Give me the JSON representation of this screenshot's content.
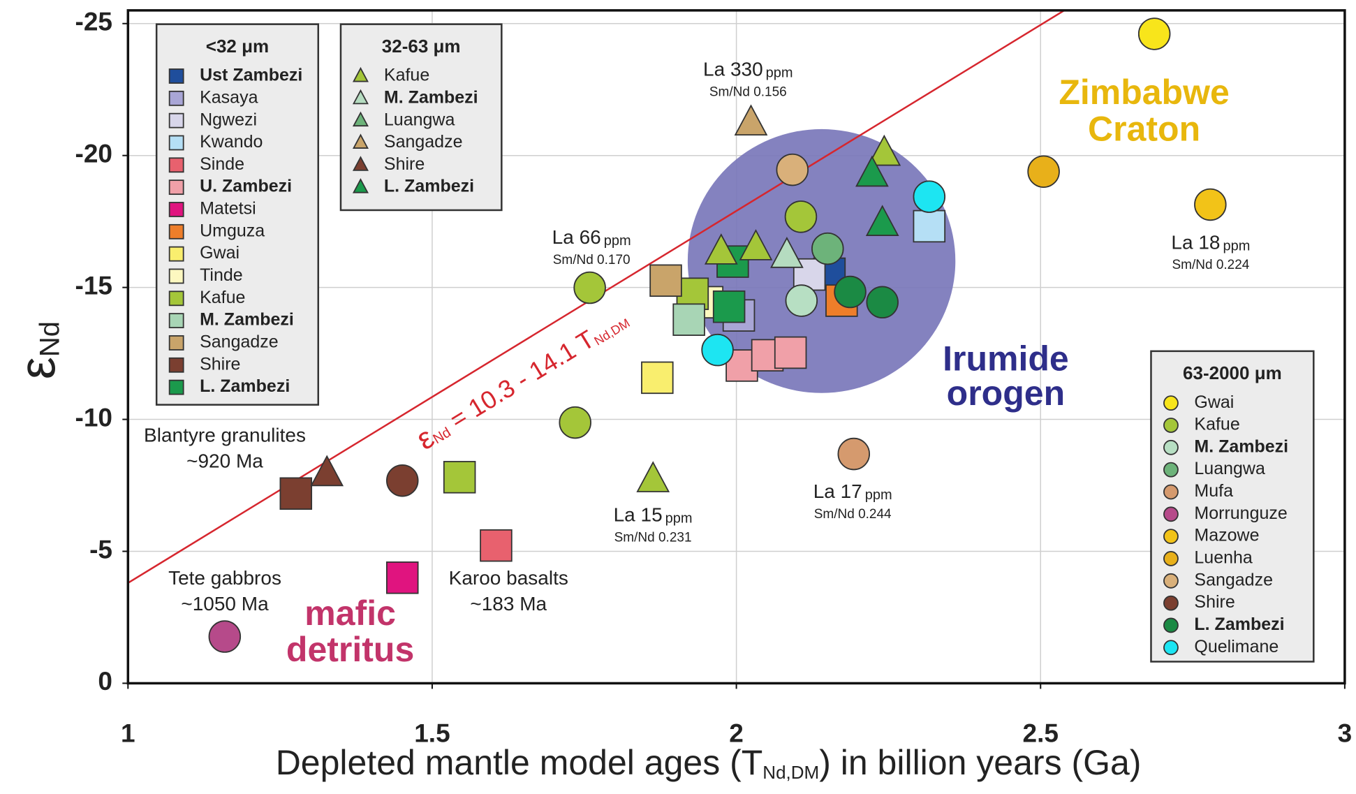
{
  "chart_data": {
    "type": "scatter",
    "xlabel": [
      "Depleted mantle model ages (T",
      "Nd,DM",
      ") in billion years (Ga)"
    ],
    "ylabel": [
      "ε",
      "Nd"
    ],
    "xlim": [
      1,
      3
    ],
    "ylim": [
      0,
      -25.5
    ],
    "xticks": [
      1,
      1.5,
      2,
      2.5,
      3
    ],
    "yticks": [
      0,
      -5,
      -10,
      -15,
      -20,
      -25
    ],
    "grid": true,
    "fit": {
      "intercept": 10.3,
      "slope": -14.1,
      "color": "#d6262e",
      "label": [
        "ε",
        "Nd",
        " = 10.3 - 14.1 T",
        "Nd,DM"
      ]
    },
    "region": {
      "x": 2.14,
      "y": -16,
      "rx": 0.22,
      "ry": 5,
      "color": "#7774b8",
      "label": [
        "Irumide",
        "orogen"
      ],
      "label_color": "#2e2e8a"
    },
    "groups": [
      {
        "title": "<32 μm",
        "marker": "square",
        "series": [
          {
            "name": "Ust Zambezi",
            "bold": true,
            "color": "#1f4e9c",
            "x": [
              2.153
            ],
            "y": [
              -15.52
            ]
          },
          {
            "name": "Kasaya",
            "color": "#a9a6d6",
            "x": [
              2.004
            ],
            "y": [
              -13.94
            ]
          },
          {
            "name": "Ngwezi",
            "color": "#d8d6ea",
            "x": [
              2.12
            ],
            "y": [
              -15.49
            ]
          },
          {
            "name": "Kwando",
            "color": "#b5dff5",
            "x": [
              2.317
            ],
            "y": [
              -17.32
            ]
          },
          {
            "name": "Sinde",
            "color": "#e8616e",
            "x": [
              1.605
            ],
            "y": [
              -5.22
            ]
          },
          {
            "name": "U. Zambezi",
            "bold": true,
            "color": "#f0a0a8",
            "x": [
              2.009,
              2.051,
              2.089
            ],
            "y": [
              -12.04,
              -12.43,
              -12.53
            ]
          },
          {
            "name": "Matetsi",
            "color": "#e0147f",
            "x": [
              1.451
            ],
            "y": [
              -4.0
            ]
          },
          {
            "name": "Umguza",
            "color": "#ee7e2a",
            "x": [
              2.173
            ],
            "y": [
              -14.5
            ]
          },
          {
            "name": "Gwai",
            "color": "#f9ee6e",
            "x": [
              1.87
            ],
            "y": [
              -11.58
            ]
          },
          {
            "name": "Tinde",
            "color": "#fdf8c0",
            "x": [
              1.952
            ],
            "y": [
              -14.44
            ]
          },
          {
            "name": "Kafue",
            "color": "#a4c639",
            "x": [
              1.928,
              1.545
            ],
            "y": [
              -14.76,
              -7.81
            ]
          },
          {
            "name": "M. Zambezi",
            "bold": true,
            "color": "#a8d5b5",
            "x": [
              1.922
            ],
            "y": [
              -13.78
            ]
          },
          {
            "name": "Sangadze",
            "color": "#c9a46a",
            "x": [
              1.884
            ],
            "y": [
              -15.26
            ]
          },
          {
            "name": "Shire",
            "color": "#7b3f30",
            "x": [
              1.276
            ],
            "y": [
              -7.19
            ]
          },
          {
            "name": "L. Zambezi",
            "bold": true,
            "color": "#1b9a4c",
            "x": [
              1.988,
              1.994
            ],
            "y": [
              -14.27,
              -15.98
            ]
          }
        ]
      },
      {
        "title": "32-63 μm",
        "marker": "triangle",
        "series": [
          {
            "name": "Kafue",
            "color": "#a4c639",
            "x": [
              1.975,
              2.032,
              1.863,
              2.243
            ],
            "y": [
              -16.34,
              -16.5,
              -7.71,
              -20.08
            ]
          },
          {
            "name": "M. Zambezi",
            "bold": true,
            "color": "#b5dcc0",
            "x": [
              2.083
            ],
            "y": [
              -16.21
            ]
          },
          {
            "name": "Luangwa",
            "color": "#6db37a",
            "x": [],
            "y": []
          },
          {
            "name": "Sangadze",
            "color": "#c9a46a",
            "x": [
              2.024
            ],
            "y": [
              -21.23
            ]
          },
          {
            "name": "Shire",
            "color": "#7b3f30",
            "x": [
              1.327
            ],
            "y": [
              -7.94
            ]
          },
          {
            "name": "L. Zambezi",
            "bold": true,
            "color": "#1b9a4c",
            "x": [
              2.223,
              2.24
            ],
            "y": [
              -19.29,
              -17.42
            ]
          }
        ]
      },
      {
        "title": "63-2000 μm",
        "marker": "circle",
        "series": [
          {
            "name": "Gwai",
            "color": "#f8e51b",
            "x": [
              2.687
            ],
            "y": [
              -24.61
            ]
          },
          {
            "name": "Kafue",
            "color": "#a4c639",
            "x": [
              2.106,
              1.759,
              1.735
            ],
            "y": [
              -17.68,
              -14.99,
              -9.88
            ]
          },
          {
            "name": "M. Zambezi",
            "bold": true,
            "color": "#b7dfc3",
            "x": [
              2.107
            ],
            "y": [
              -14.5
            ]
          },
          {
            "name": "Luangwa",
            "color": "#6db37a",
            "x": [
              2.15
            ],
            "y": [
              -16.47
            ]
          },
          {
            "name": "Mufa",
            "color": "#d59a6e",
            "x": [
              2.193
            ],
            "y": [
              -8.69
            ]
          },
          {
            "name": "Morrunguze",
            "color": "#b64a8a",
            "x": [
              1.159
            ],
            "y": [
              -1.77
            ]
          },
          {
            "name": "Mazowe",
            "color": "#f2c318",
            "x": [
              2.779
            ],
            "y": [
              -18.14
            ]
          },
          {
            "name": "Luenha",
            "color": "#e8b01a",
            "x": [
              2.505
            ],
            "y": [
              -19.39
            ]
          },
          {
            "name": "Sangadze",
            "color": "#d9b07a",
            "x": [
              2.092
            ],
            "y": [
              -19.46
            ]
          },
          {
            "name": "Shire",
            "color": "#7b3f30",
            "x": [
              1.451
            ],
            "y": [
              -7.68
            ]
          },
          {
            "name": "L. Zambezi",
            "bold": true,
            "color": "#1b8a44",
            "x": [
              2.187,
              2.24
            ],
            "y": [
              -14.83,
              -14.44
            ]
          },
          {
            "name": "Quelimane",
            "color": "#1de5f2",
            "x": [
              2.317,
              1.969
            ],
            "y": [
              -18.44,
              -12.63
            ]
          }
        ]
      }
    ],
    "annotations": [
      {
        "lines": [
          "Blantyre granulites",
          "~920 Ma"
        ]
      },
      {
        "lines": [
          "Tete gabbros",
          "~1050 Ma"
        ]
      },
      {
        "lines": [
          "Karoo basalts",
          "~183 Ma"
        ]
      },
      {
        "text": "La 330",
        "unit": "ppm",
        "note": "Sm/Nd 0.156"
      },
      {
        "text": "La 66",
        "unit": "ppm",
        "note": "Sm/Nd 0.170"
      },
      {
        "text": "La 15",
        "unit": "ppm",
        "note": "Sm/Nd 0.231"
      },
      {
        "text": "La 17",
        "unit": "ppm",
        "note": "Sm/Nd 0.244"
      },
      {
        "text": "La 18",
        "unit": "ppm",
        "note": "Sm/Nd 0.224"
      },
      {
        "lines": [
          "Zimbabwe",
          "Craton"
        ],
        "color": "#e8b70d"
      },
      {
        "lines": [
          "mafic",
          "detritus"
        ],
        "color": "#c2346a"
      }
    ]
  }
}
